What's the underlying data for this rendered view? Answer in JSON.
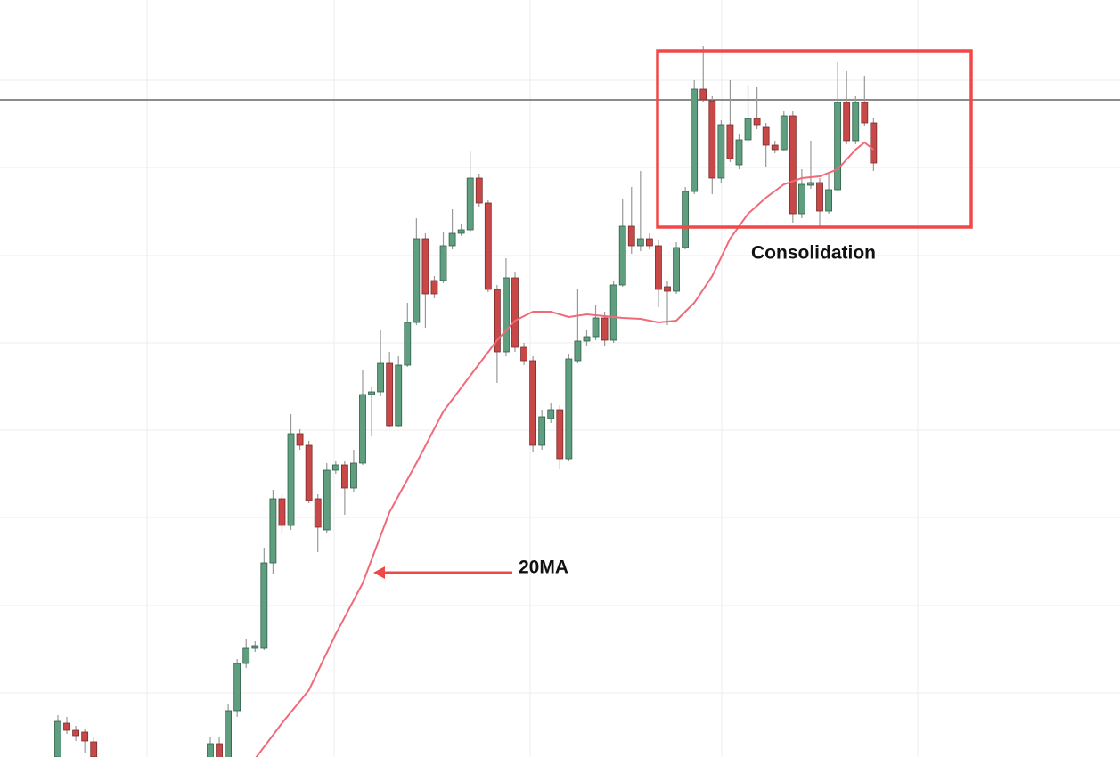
{
  "chart_data": {
    "type": "candlestick",
    "x": [
      0,
      1,
      2,
      3,
      4,
      17,
      18,
      19,
      20,
      21,
      22,
      23,
      24,
      25,
      26,
      27,
      28,
      29,
      30,
      31,
      32,
      33,
      34,
      35,
      36,
      37,
      38,
      39,
      40,
      41,
      42,
      43,
      44,
      45,
      46,
      47,
      48,
      49,
      50,
      51,
      52,
      53,
      54,
      55,
      56,
      57,
      58,
      59,
      60,
      61,
      62,
      63,
      64,
      65,
      66,
      67,
      68,
      69,
      70,
      71,
      72,
      73,
      74,
      75,
      76,
      77,
      78,
      79,
      80,
      81,
      82,
      83,
      84,
      85,
      86,
      87,
      88,
      89,
      90,
      91
    ],
    "open": [
      0,
      38,
      30,
      28,
      17,
      -5,
      15,
      -5,
      52,
      105,
      122,
      122,
      218,
      290,
      260,
      363,
      350,
      290,
      255,
      322,
      328,
      302,
      330,
      407,
      410,
      442,
      372,
      440,
      488,
      582,
      535,
      535,
      574,
      588,
      592,
      650,
      622,
      525,
      455,
      538,
      460,
      445,
      350,
      380,
      390,
      335,
      445,
      467,
      472,
      493,
      468,
      530,
      596,
      574,
      582,
      574,
      528,
      523,
      572,
      635,
      750,
      737,
      650,
      710,
      665,
      693,
      717,
      707,
      687,
      682,
      720,
      610,
      642,
      645,
      613,
      637,
      735,
      692,
      735,
      712
    ],
    "high": [
      47,
      45,
      35,
      32,
      22,
      22,
      22,
      60,
      110,
      132,
      130,
      235,
      300,
      295,
      385,
      368,
      355,
      295,
      330,
      332,
      332,
      345,
      435,
      415,
      480,
      455,
      450,
      510,
      605,
      588,
      540,
      590,
      615,
      598,
      680,
      655,
      625,
      530,
      560,
      545,
      465,
      450,
      390,
      398,
      395,
      452,
      525,
      480,
      508,
      500,
      535,
      627,
      640,
      658,
      588,
      580,
      535,
      578,
      640,
      760,
      798,
      742,
      715,
      760,
      700,
      755,
      752,
      712,
      692,
      725,
      725,
      660,
      692,
      650,
      655,
      780,
      770,
      742,
      765,
      717
    ],
    "low": [
      0,
      26,
      18,
      5,
      0,
      0,
      -10,
      -10,
      45,
      100,
      118,
      120,
      205,
      250,
      255,
      345,
      285,
      230,
      252,
      318,
      272,
      298,
      328,
      360,
      405,
      370,
      370,
      438,
      485,
      482,
      515,
      532,
      570,
      585,
      590,
      618,
      522,
      420,
      450,
      455,
      440,
      342,
      345,
      375,
      323,
      332,
      442,
      462,
      468,
      462,
      465,
      528,
      565,
      568,
      570,
      505,
      485,
      520,
      570,
      632,
      735,
      632,
      645,
      668,
      660,
      690,
      705,
      662,
      678,
      680,
      600,
      605,
      638,
      595,
      610,
      635,
      688,
      688,
      708,
      658
    ],
    "close": [
      40,
      30,
      24,
      18,
      0,
      15,
      -5,
      52,
      105,
      122,
      125,
      218,
      290,
      260,
      363,
      350,
      288,
      258,
      322,
      328,
      302,
      330,
      407,
      410,
      442,
      372,
      440,
      488,
      582,
      520,
      520,
      574,
      588,
      592,
      650,
      622,
      525,
      455,
      538,
      460,
      445,
      350,
      382,
      390,
      335,
      447,
      467,
      472,
      493,
      468,
      530,
      596,
      574,
      582,
      574,
      525,
      523,
      572,
      635,
      750,
      738,
      650,
      710,
      672,
      693,
      717,
      710,
      687,
      682,
      720,
      610,
      643,
      645,
      613,
      637,
      735,
      692,
      735,
      712,
      667
    ],
    "up_color": "#5f9f80",
    "down_color": "#c84848",
    "ma_x": [
      22,
      25,
      28,
      31,
      34,
      37,
      40,
      43,
      46,
      49,
      51,
      53,
      55,
      57,
      59,
      61,
      63,
      65,
      67,
      69,
      71,
      73,
      75,
      77,
      79,
      81,
      83,
      85,
      87,
      89,
      90,
      91
    ],
    "ma_values": [
      -2,
      38,
      75,
      138,
      195,
      275,
      330,
      388,
      428,
      468,
      490,
      500,
      500,
      494,
      497,
      495,
      493,
      492,
      488,
      490,
      510,
      540,
      582,
      610,
      628,
      643,
      650,
      652,
      660,
      682,
      690,
      682
    ],
    "ma_color": "#f06a78",
    "level": 738,
    "xlim": [
      -6.46,
      118.5
    ],
    "ylim": [
      0,
      850
    ],
    "annotations": [
      "Consolidation",
      "20MA"
    ]
  }
}
